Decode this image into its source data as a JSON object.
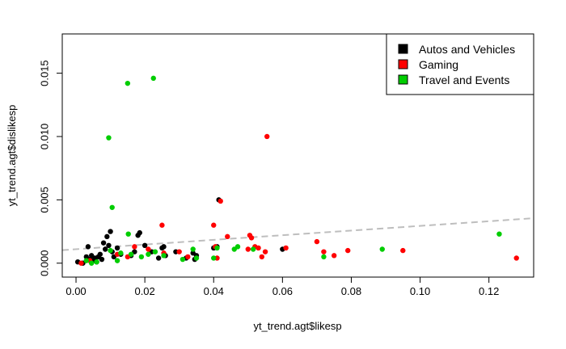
{
  "chart_data": {
    "type": "scatter",
    "title": "",
    "xlabel": "yt_trend.agt$likesp",
    "ylabel": "yt_trend.agt$dislikesp",
    "xlim": [
      -0.004,
      0.133
    ],
    "ylim": [
      -0.0011,
      0.0181
    ],
    "x_ticks": [
      0.0,
      0.02,
      0.04,
      0.06,
      0.08,
      0.1,
      0.12
    ],
    "x_tick_labels": [
      "0.00",
      "0.02",
      "0.04",
      "0.06",
      "0.08",
      "0.10",
      "0.12"
    ],
    "y_ticks": [
      0.0,
      0.005,
      0.01,
      0.015
    ],
    "y_tick_labels": [
      "0.000",
      "0.005",
      "0.010",
      "0.015"
    ],
    "grid": false,
    "legend_position": "top-right",
    "series": [
      {
        "name": "Autos and Vehicles",
        "color": "#000000",
        "points": [
          [
            0.0005,
            0.0001
          ],
          [
            0.002,
            0.0
          ],
          [
            0.003,
            0.0005
          ],
          [
            0.0035,
            0.0013
          ],
          [
            0.004,
            0.0003
          ],
          [
            0.0045,
            0.0006
          ],
          [
            0.005,
            0.0002
          ],
          [
            0.0055,
            0.0004
          ],
          [
            0.006,
            0.0001
          ],
          [
            0.0065,
            0.0005
          ],
          [
            0.007,
            0.0007
          ],
          [
            0.0075,
            0.0003
          ],
          [
            0.008,
            0.0016
          ],
          [
            0.0085,
            0.0011
          ],
          [
            0.009,
            0.0021
          ],
          [
            0.0095,
            0.0014
          ],
          [
            0.01,
            0.0025
          ],
          [
            0.0105,
            0.0009
          ],
          [
            0.011,
            0.0005
          ],
          [
            0.012,
            0.0012
          ],
          [
            0.013,
            0.0007
          ],
          [
            0.016,
            0.0006
          ],
          [
            0.017,
            0.0009
          ],
          [
            0.018,
            0.0022
          ],
          [
            0.0185,
            0.0024
          ],
          [
            0.02,
            0.0014
          ],
          [
            0.022,
            0.0009
          ],
          [
            0.024,
            0.0004
          ],
          [
            0.025,
            0.0012
          ],
          [
            0.0255,
            0.0013
          ],
          [
            0.026,
            0.0006
          ],
          [
            0.029,
            0.0009
          ],
          [
            0.032,
            0.0004
          ],
          [
            0.034,
            0.0008
          ],
          [
            0.0345,
            0.0003
          ],
          [
            0.035,
            0.0006
          ],
          [
            0.04,
            0.0012
          ],
          [
            0.041,
            0.0013
          ],
          [
            0.0415,
            0.005
          ],
          [
            0.06,
            0.0011
          ]
        ]
      },
      {
        "name": "Gaming",
        "color": "#ff0000",
        "points": [
          [
            0.0015,
            0.0
          ],
          [
            0.004,
            0.0002
          ],
          [
            0.012,
            0.0007
          ],
          [
            0.015,
            0.0005
          ],
          [
            0.017,
            0.0013
          ],
          [
            0.021,
            0.0011
          ],
          [
            0.025,
            0.003
          ],
          [
            0.0255,
            0.0008
          ],
          [
            0.03,
            0.0009
          ],
          [
            0.0325,
            0.0005
          ],
          [
            0.04,
            0.003
          ],
          [
            0.0405,
            0.0013
          ],
          [
            0.041,
            0.0004
          ],
          [
            0.042,
            0.0049
          ],
          [
            0.044,
            0.0021
          ],
          [
            0.05,
            0.0011
          ],
          [
            0.0505,
            0.0022
          ],
          [
            0.051,
            0.002
          ],
          [
            0.052,
            0.0013
          ],
          [
            0.053,
            0.0012
          ],
          [
            0.054,
            0.0005
          ],
          [
            0.055,
            0.0009
          ],
          [
            0.0555,
            0.01
          ],
          [
            0.061,
            0.0012
          ],
          [
            0.07,
            0.0017
          ],
          [
            0.072,
            0.0009
          ],
          [
            0.075,
            0.0006
          ],
          [
            0.079,
            0.001
          ],
          [
            0.095,
            0.001
          ],
          [
            0.128,
            0.0004
          ]
        ]
      },
      {
        "name": "Travel and Events",
        "color": "#00cd00",
        "points": [
          [
            0.003,
            0.0002
          ],
          [
            0.0045,
            0.0
          ],
          [
            0.006,
            0.0001
          ],
          [
            0.0095,
            0.0099
          ],
          [
            0.01,
            0.001
          ],
          [
            0.0105,
            0.0044
          ],
          [
            0.012,
            0.0002
          ],
          [
            0.013,
            0.0008
          ],
          [
            0.015,
            0.0142
          ],
          [
            0.0152,
            0.0023
          ],
          [
            0.016,
            0.0007
          ],
          [
            0.019,
            0.0005
          ],
          [
            0.021,
            0.0007
          ],
          [
            0.0225,
            0.0146
          ],
          [
            0.023,
            0.0009
          ],
          [
            0.0255,
            0.0006
          ],
          [
            0.031,
            0.0003
          ],
          [
            0.034,
            0.0011
          ],
          [
            0.035,
            0.0004
          ],
          [
            0.04,
            0.0004
          ],
          [
            0.041,
            0.0012
          ],
          [
            0.046,
            0.0011
          ],
          [
            0.047,
            0.0013
          ],
          [
            0.0515,
            0.0011
          ],
          [
            0.072,
            0.0005
          ],
          [
            0.089,
            0.0011
          ],
          [
            0.123,
            0.0023
          ]
        ]
      }
    ],
    "trend_line": {
      "x": [
        -0.004,
        0.133
      ],
      "y": [
        0.00103,
        0.00355
      ],
      "color": "#bebebe",
      "style": "dashed"
    }
  }
}
